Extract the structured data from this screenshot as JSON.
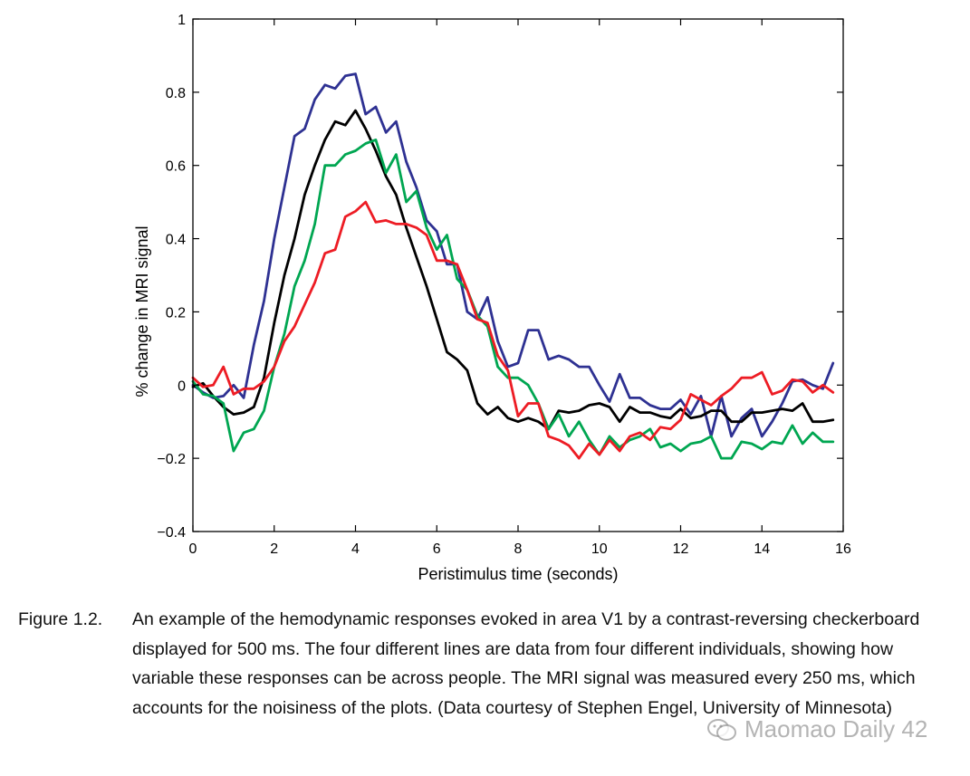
{
  "chart_data": {
    "type": "line",
    "xlabel": "Peristimulus time (seconds)",
    "ylabel": "% change in MRI signal",
    "xlim": [
      0,
      16
    ],
    "ylim": [
      -0.4,
      1
    ],
    "xticks": [
      0,
      2,
      4,
      6,
      8,
      10,
      12,
      14,
      16
    ],
    "yticks": [
      -0.4,
      -0.2,
      0,
      0.2,
      0.4,
      0.6,
      0.8,
      1
    ],
    "ytick_labels": [
      "−0.4",
      "−0.2",
      "0",
      "0.2",
      "0.4",
      "0.6",
      "0.8",
      "1"
    ],
    "grid": false,
    "x": [
      0,
      0.25,
      0.5,
      0.75,
      1,
      1.25,
      1.5,
      1.75,
      2,
      2.25,
      2.5,
      2.75,
      3,
      3.25,
      3.5,
      3.75,
      4,
      4.25,
      4.5,
      4.75,
      5,
      5.25,
      5.5,
      5.75,
      6,
      6.25,
      6.5,
      6.75,
      7,
      7.25,
      7.5,
      7.75,
      8,
      8.25,
      8.5,
      8.75,
      9,
      9.25,
      9.5,
      9.75,
      10,
      10.25,
      10.5,
      10.75,
      11,
      11.25,
      11.5,
      11.75,
      12,
      12.25,
      12.5,
      12.75,
      13,
      13.25,
      13.5,
      13.75,
      14,
      14.25,
      14.5,
      14.75,
      15,
      15.25,
      15.5,
      15.75
    ],
    "series": [
      {
        "color": "#2e3192",
        "values": [
          0,
          -0.02,
          -0.035,
          -0.03,
          0,
          -0.035,
          0.11,
          0.23,
          0.4,
          0.54,
          0.68,
          0.7,
          0.78,
          0.82,
          0.81,
          0.845,
          0.85,
          0.74,
          0.76,
          0.69,
          0.72,
          0.61,
          0.54,
          0.45,
          0.42,
          0.33,
          0.33,
          0.2,
          0.18,
          0.24,
          0.12,
          0.05,
          0.06,
          0.15,
          0.15,
          0.07,
          0.08,
          0.07,
          0.05,
          0.05,
          0.0,
          -0.045,
          0.03,
          -0.035,
          -0.035,
          -0.055,
          -0.065,
          -0.065,
          -0.04,
          -0.08,
          -0.03,
          -0.14,
          -0.03,
          -0.14,
          -0.09,
          -0.065,
          -0.14,
          -0.1,
          -0.05,
          0.01,
          0.015,
          0.0,
          -0.01,
          0.06
        ]
      },
      {
        "color": "#000000",
        "values": [
          -0.005,
          0.005,
          -0.03,
          -0.06,
          -0.08,
          -0.075,
          -0.06,
          0.02,
          0.17,
          0.3,
          0.4,
          0.52,
          0.6,
          0.67,
          0.72,
          0.71,
          0.75,
          0.7,
          0.64,
          0.57,
          0.52,
          0.43,
          0.35,
          0.27,
          0.18,
          0.09,
          0.07,
          0.04,
          -0.05,
          -0.08,
          -0.06,
          -0.09,
          -0.1,
          -0.09,
          -0.1,
          -0.12,
          -0.07,
          -0.075,
          -0.07,
          -0.055,
          -0.05,
          -0.06,
          -0.1,
          -0.06,
          -0.075,
          -0.075,
          -0.085,
          -0.09,
          -0.065,
          -0.09,
          -0.085,
          -0.07,
          -0.07,
          -0.1,
          -0.1,
          -0.075,
          -0.075,
          -0.07,
          -0.065,
          -0.07,
          -0.05,
          -0.1,
          -0.1,
          -0.095
        ]
      },
      {
        "color": "#00a651",
        "values": [
          0.01,
          -0.025,
          -0.03,
          -0.05,
          -0.18,
          -0.13,
          -0.12,
          -0.07,
          0.05,
          0.14,
          0.27,
          0.34,
          0.44,
          0.6,
          0.6,
          0.63,
          0.64,
          0.66,
          0.67,
          0.58,
          0.63,
          0.5,
          0.53,
          0.43,
          0.37,
          0.41,
          0.29,
          0.26,
          0.19,
          0.16,
          0.05,
          0.02,
          0.02,
          0.0,
          -0.05,
          -0.12,
          -0.08,
          -0.14,
          -0.1,
          -0.15,
          -0.19,
          -0.14,
          -0.17,
          -0.15,
          -0.14,
          -0.12,
          -0.17,
          -0.16,
          -0.18,
          -0.16,
          -0.155,
          -0.14,
          -0.2,
          -0.2,
          -0.155,
          -0.16,
          -0.175,
          -0.155,
          -0.16,
          -0.11,
          -0.16,
          -0.13,
          -0.155,
          -0.155
        ]
      },
      {
        "color": "#ed1c24",
        "values": [
          0.02,
          -0.005,
          0.0,
          0.05,
          -0.025,
          -0.01,
          -0.01,
          0.01,
          0.05,
          0.12,
          0.16,
          0.22,
          0.28,
          0.36,
          0.37,
          0.46,
          0.475,
          0.5,
          0.445,
          0.45,
          0.44,
          0.44,
          0.43,
          0.41,
          0.34,
          0.34,
          0.33,
          0.26,
          0.18,
          0.17,
          0.08,
          0.04,
          -0.085,
          -0.05,
          -0.05,
          -0.14,
          -0.15,
          -0.165,
          -0.2,
          -0.16,
          -0.19,
          -0.15,
          -0.18,
          -0.14,
          -0.13,
          -0.15,
          -0.115,
          -0.12,
          -0.095,
          -0.025,
          -0.04,
          -0.055,
          -0.03,
          -0.01,
          0.02,
          0.02,
          0.035,
          -0.025,
          -0.015,
          0.015,
          0.01,
          -0.02,
          0.0,
          -0.02
        ]
      }
    ]
  },
  "caption": {
    "label": "Figure 1.2.",
    "text": "An example of the hemodynamic responses evoked in area V1 by a contrast-reversing checkerboard displayed for 500 ms. The four different lines are data from four different individuals, showing how variable these responses can be across people. The MRI signal was measured every 250 ms, which accounts for the noisiness of the plots. (Data courtesy of Stephen Engel, University of Minnesota)"
  },
  "watermark": {
    "text": "Maomao Daily 42",
    "icon": "wechat-icon"
  }
}
